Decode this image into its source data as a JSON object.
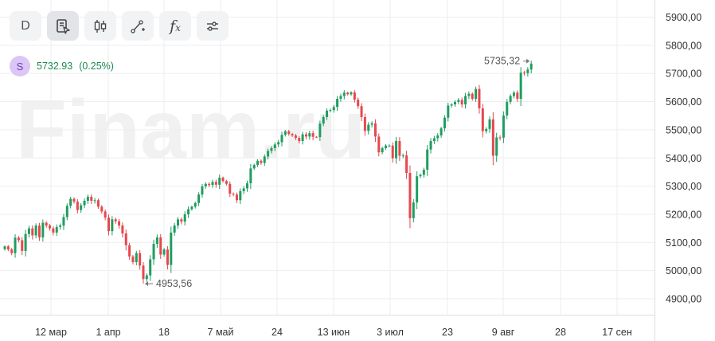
{
  "toolbar": {
    "timeframe_label": "D",
    "buttons": [
      "timeframe",
      "order-cursor-icon",
      "candles-icon",
      "draw-line-icon",
      "function-icon",
      "settings-sliders-icon"
    ]
  },
  "ticker": {
    "avatar_letter": "S",
    "price": "5732.93",
    "change": "(0.25%)"
  },
  "watermark": "Finam.ru",
  "colors": {
    "up": "#1f9d60",
    "down": "#e5484d",
    "grid": "#edeef0",
    "axis_text": "#333333",
    "accent_green": "#1a8b4f",
    "avatar_bg": "#dcc5f7"
  },
  "chart_data": {
    "type": "candlestick",
    "ylim": [
      4850,
      5950
    ],
    "y_ticks": [
      "4900,00",
      "5000,00",
      "5100,00",
      "5200,00",
      "5300,00",
      "5400,00",
      "5500,00",
      "5600,00",
      "5700,00",
      "5800,00",
      "5900,00"
    ],
    "x_ticks": [
      "12 мар",
      "1 апр",
      "18",
      "7 май",
      "24",
      "13 июн",
      "3 июл",
      "23",
      "9 авг",
      "28",
      "17 сен"
    ],
    "annotations": {
      "low_label": "4953,56",
      "high_label": "5735,32"
    },
    "closes": [
      5086,
      5075,
      5062,
      5117,
      5108,
      5070,
      5130,
      5150,
      5125,
      5160,
      5118,
      5170,
      5160,
      5150,
      5135,
      5155,
      5160,
      5190,
      5230,
      5255,
      5245,
      5215,
      5232,
      5248,
      5262,
      5248,
      5250,
      5227,
      5210,
      5188,
      5140,
      5182,
      5175,
      5160,
      5132,
      5090,
      5050,
      5030,
      5062,
      5018,
      4970,
      4983,
      5040,
      5095,
      5118,
      5057,
      5075,
      5020,
      5135,
      5160,
      5182,
      5174,
      5200,
      5218,
      5227,
      5240,
      5270,
      5299,
      5308,
      5304,
      5315,
      5305,
      5330,
      5318,
      5308,
      5273,
      5270,
      5250,
      5282,
      5292,
      5310,
      5363,
      5375,
      5390,
      5382,
      5405,
      5425,
      5435,
      5448,
      5456,
      5482,
      5495,
      5485,
      5480,
      5471,
      5460,
      5484,
      5476,
      5488,
      5475,
      5474,
      5522,
      5545,
      5568,
      5570,
      5581,
      5610,
      5620,
      5632,
      5626,
      5633,
      5607,
      5584,
      5545,
      5496,
      5518,
      5523,
      5476,
      5420,
      5435,
      5444,
      5444,
      5399,
      5460,
      5408,
      5409,
      5347,
      5186,
      5242,
      5335,
      5340,
      5358,
      5430,
      5460,
      5470,
      5480,
      5505,
      5543,
      5586,
      5590,
      5599,
      5606,
      5590,
      5620,
      5628,
      5610,
      5645,
      5576,
      5495,
      5503,
      5537,
      5408,
      5473,
      5472,
      5551,
      5599,
      5620,
      5632,
      5610,
      5703,
      5701,
      5714,
      5735
    ]
  }
}
